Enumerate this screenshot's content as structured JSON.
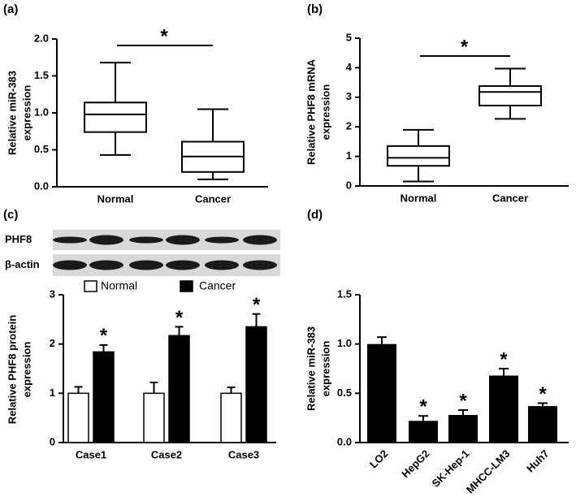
{
  "chart_data": [
    {
      "type": "box",
      "panel": "(a)",
      "ylabel": [
        "Relative miR-383",
        "expression"
      ],
      "categories": [
        "Normal",
        "Cancer"
      ],
      "min": [
        0.43,
        0.1
      ],
      "q1": [
        0.74,
        0.2
      ],
      "median": [
        0.98,
        0.41
      ],
      "q3": [
        1.14,
        0.61
      ],
      "max": [
        1.68,
        1.05
      ],
      "color": "#ffffff",
      "significance": "*",
      "ylim": [
        0,
        2
      ],
      "yticks": [
        {
          "value": 0,
          "label": "0.0"
        },
        0.5,
        {
          "value": 1,
          "label": "1.0"
        },
        1.5,
        {
          "value": 2,
          "label": "2.0"
        }
      ]
    },
    {
      "type": "box",
      "panel": "(b)",
      "ylabel": [
        "Relative PHF8 mRNA",
        "expression"
      ],
      "categories": [
        "Normal",
        "Cancer"
      ],
      "min": [
        0.15,
        2.27
      ],
      "q1": [
        0.68,
        2.72
      ],
      "median": [
        0.95,
        3.18
      ],
      "q3": [
        1.35,
        3.38
      ],
      "max": [
        1.9,
        3.97
      ],
      "color": "#ffffff",
      "significance": "*",
      "ylim": [
        0,
        5
      ],
      "yticks": [
        0,
        1,
        2,
        3,
        4,
        5
      ]
    },
    {
      "type": "grouped_bar",
      "panel": "(c)",
      "blot_labels": [
        "PHF8",
        "β-actin"
      ],
      "ylabel": [
        "Relative PHF8 protein",
        "expression"
      ],
      "categories": [
        "Case1",
        "Case2",
        "Case3"
      ],
      "series": [
        {
          "name": "Normal",
          "color": "#ffffff",
          "values": [
            1,
            1,
            1
          ],
          "errors": [
            0.13,
            0.22,
            0.12
          ]
        },
        {
          "name": "Cancer",
          "color": "#000000",
          "values": [
            1.84,
            2.17,
            2.35
          ],
          "errors": [
            0.14,
            0.18,
            0.26
          ],
          "significance": [
            "*",
            "*",
            "*"
          ]
        }
      ],
      "ylim": [
        0,
        3
      ],
      "yticks": [
        0,
        1,
        2,
        3
      ]
    },
    {
      "type": "bar",
      "panel": "(d)",
      "ylabel": [
        "Relative miR-383",
        "expression"
      ],
      "categories": [
        "LO2",
        "HepG2",
        "SK-Hep-1",
        "MHCC-LM3",
        "Huh7"
      ],
      "values": [
        1.0,
        0.22,
        0.28,
        0.68,
        0.37
      ],
      "errors": [
        0.07,
        0.05,
        0.05,
        0.07,
        0.03
      ],
      "significance": [
        null,
        "*",
        "*",
        "*",
        "*"
      ],
      "color": "#000000",
      "ylim": [
        0,
        1.5
      ],
      "yticks": [
        {
          "value": 0,
          "label": "0.0"
        },
        0.5,
        {
          "value": 1,
          "label": "1.0"
        },
        1.5
      ]
    }
  ]
}
